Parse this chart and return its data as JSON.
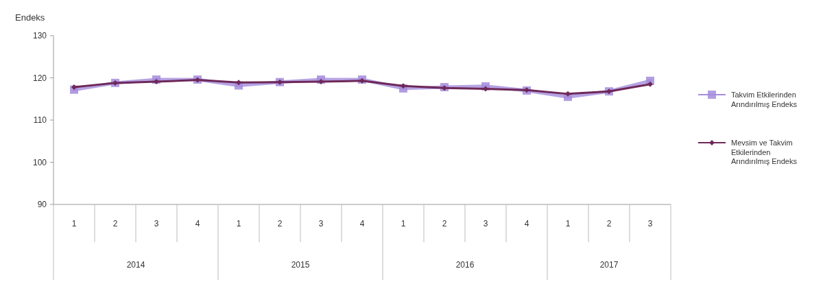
{
  "chart_data": {
    "type": "line",
    "ylabel": "Endeks",
    "categories": [
      "1",
      "2",
      "3",
      "4",
      "1",
      "2",
      "3",
      "4",
      "1",
      "2",
      "3",
      "4",
      "1",
      "2",
      "3"
    ],
    "annotations": [
      "2014",
      "2015",
      "2016",
      "2017"
    ],
    "ylim": [
      90,
      130
    ],
    "yticks": [
      90,
      100,
      110,
      120,
      130
    ],
    "grid": false,
    "legend": "right",
    "series": [
      {
        "name": "Takvim Etkilerinden Arındırılmış Endeks",
        "color": "#a48cdc",
        "marker": "square",
        "values": [
          117.2,
          118.8,
          119.6,
          119.6,
          118.2,
          119.0,
          119.6,
          119.6,
          117.5,
          117.8,
          118.0,
          117.0,
          115.5,
          116.8,
          119.3
        ]
      },
      {
        "name": "Mevsim ve Takvim Etkilerinden Arındırılmış Endeks",
        "color": "#6e2858",
        "marker": "diamond",
        "values": [
          117.8,
          118.8,
          119.1,
          119.5,
          118.9,
          119.0,
          119.1,
          119.3,
          118.1,
          117.6,
          117.4,
          117.1,
          116.2,
          116.8,
          118.5
        ]
      }
    ]
  }
}
